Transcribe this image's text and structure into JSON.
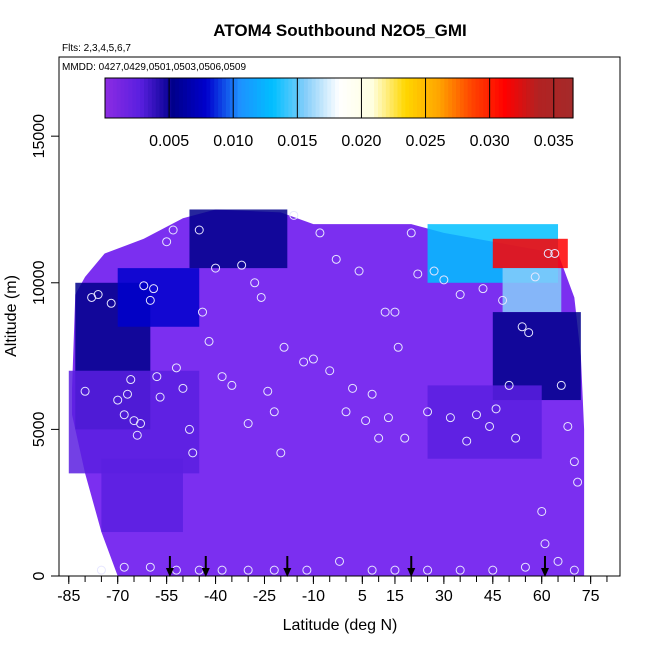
{
  "chart_data": {
    "type": "heatmap",
    "title": "ATOM4 Southbound N2O5_GMI",
    "subtitle_flights": "Flts: 2,3,4,5,6,7",
    "subtitle_dates": "MMDD: 0427,0429,0501,0503,0506,0509",
    "xlabel": "Latitude (deg N)",
    "ylabel": "Altitude (m)",
    "xlim": [
      -88,
      84
    ],
    "ylim": [
      0,
      17700
    ],
    "x_ticks": [
      -85,
      -70,
      -55,
      -40,
      -25,
      -10,
      5,
      15,
      30,
      45,
      60,
      75
    ],
    "y_ticks": [
      0,
      5000,
      10000,
      15000
    ],
    "colorbar": {
      "range": [
        0,
        0.0365
      ],
      "ticks": [
        0.005,
        0.01,
        0.015,
        0.02,
        0.025,
        0.03,
        0.035
      ],
      "tick_labels": [
        "0.005",
        "0.010",
        "0.015",
        "0.020",
        "0.025",
        "0.030",
        "0.035"
      ],
      "colors": [
        "#8a2be2",
        "#5a1fe0",
        "#00008b",
        "#0000cd",
        "#1e90ff",
        "#00bfff",
        "#87cefa",
        "#ffffff",
        "#ffffe0",
        "#ffd700",
        "#ffa500",
        "#ff4500",
        "#ff0000",
        "#b22222",
        "#a52a2a"
      ],
      "placement": "top"
    },
    "background_color": "#7b2ff0",
    "regions": [
      {
        "x": [
          -83,
          -60
        ],
        "y": [
          5000,
          10000
        ],
        "value": 0.0045
      },
      {
        "x": [
          -70,
          -45
        ],
        "y": [
          8500,
          10500
        ],
        "value": 0.0085
      },
      {
        "x": [
          -48,
          -18
        ],
        "y": [
          10500,
          12500
        ],
        "value": 0.0042
      },
      {
        "x": [
          -85,
          -45
        ],
        "y": [
          3500,
          7000
        ],
        "value": 0.0035
      },
      {
        "x": [
          -75,
          -50
        ],
        "y": [
          1500,
          4000
        ],
        "value": 0.0015
      },
      {
        "x": [
          25,
          65
        ],
        "y": [
          10000,
          12000
        ],
        "value": 0.012
      },
      {
        "x": [
          45,
          68
        ],
        "y": [
          10500,
          11500
        ],
        "value": 0.03
      },
      {
        "x": [
          48,
          66
        ],
        "y": [
          9000,
          10500
        ],
        "value": 0.015
      },
      {
        "x": [
          45,
          72
        ],
        "y": [
          6000,
          9000
        ],
        "value": 0.0045
      },
      {
        "x": [
          25,
          60
        ],
        "y": [
          4000,
          6500
        ],
        "value": 0.002
      }
    ],
    "observations": [
      {
        "x": -80,
        "y": 6300
      },
      {
        "x": -78,
        "y": 9500
      },
      {
        "x": -76,
        "y": 9600
      },
      {
        "x": -72,
        "y": 9300
      },
      {
        "x": -70,
        "y": 6000
      },
      {
        "x": -68,
        "y": 5500
      },
      {
        "x": -67,
        "y": 6200
      },
      {
        "x": -66,
        "y": 6700
      },
      {
        "x": -65,
        "y": 5300
      },
      {
        "x": -64,
        "y": 4800
      },
      {
        "x": -63,
        "y": 5200
      },
      {
        "x": -62,
        "y": 9900
      },
      {
        "x": -60,
        "y": 9400
      },
      {
        "x": -59,
        "y": 9800
      },
      {
        "x": -58,
        "y": 6800
      },
      {
        "x": -57,
        "y": 6100
      },
      {
        "x": -55,
        "y": 11400
      },
      {
        "x": -53,
        "y": 11800
      },
      {
        "x": -52,
        "y": 7100
      },
      {
        "x": -50,
        "y": 6400
      },
      {
        "x": -48,
        "y": 5000
      },
      {
        "x": -47,
        "y": 4200
      },
      {
        "x": -45,
        "y": 11800
      },
      {
        "x": -44,
        "y": 9000
      },
      {
        "x": -42,
        "y": 8000
      },
      {
        "x": -40,
        "y": 10500
      },
      {
        "x": -38,
        "y": 6800
      },
      {
        "x": -35,
        "y": 6500
      },
      {
        "x": -32,
        "y": 10600
      },
      {
        "x": -30,
        "y": 5200
      },
      {
        "x": -28,
        "y": 10000
      },
      {
        "x": -26,
        "y": 9500
      },
      {
        "x": -24,
        "y": 6300
      },
      {
        "x": -22,
        "y": 5600
      },
      {
        "x": -20,
        "y": 4200
      },
      {
        "x": -19,
        "y": 7800
      },
      {
        "x": -16,
        "y": 12300
      },
      {
        "x": -13,
        "y": 7300
      },
      {
        "x": -10,
        "y": 7400
      },
      {
        "x": -8,
        "y": 11700
      },
      {
        "x": -5,
        "y": 7000
      },
      {
        "x": -3,
        "y": 10800
      },
      {
        "x": 0,
        "y": 5600
      },
      {
        "x": 2,
        "y": 6400
      },
      {
        "x": 4,
        "y": 10400
      },
      {
        "x": 6,
        "y": 5300
      },
      {
        "x": 8,
        "y": 6200
      },
      {
        "x": 10,
        "y": 4700
      },
      {
        "x": 12,
        "y": 9000
      },
      {
        "x": 13,
        "y": 5400
      },
      {
        "x": 15,
        "y": 9000
      },
      {
        "x": 16,
        "y": 7800
      },
      {
        "x": 18,
        "y": 4700
      },
      {
        "x": 20,
        "y": 11700
      },
      {
        "x": 22,
        "y": 10300
      },
      {
        "x": 25,
        "y": 5600
      },
      {
        "x": 27,
        "y": 10400
      },
      {
        "x": 30,
        "y": 10100
      },
      {
        "x": 32,
        "y": 5400
      },
      {
        "x": 35,
        "y": 9600
      },
      {
        "x": 37,
        "y": 4600
      },
      {
        "x": 40,
        "y": 5500
      },
      {
        "x": 42,
        "y": 9800
      },
      {
        "x": 44,
        "y": 5100
      },
      {
        "x": 46,
        "y": 5700
      },
      {
        "x": 48,
        "y": 9400
      },
      {
        "x": 50,
        "y": 6500
      },
      {
        "x": 52,
        "y": 4700
      },
      {
        "x": 54,
        "y": 8500
      },
      {
        "x": 56,
        "y": 8300
      },
      {
        "x": 58,
        "y": 10200
      },
      {
        "x": 60,
        "y": 2200
      },
      {
        "x": 61,
        "y": 1100
      },
      {
        "x": 62,
        "y": 11000
      },
      {
        "x": 64,
        "y": 11000
      },
      {
        "x": 66,
        "y": 6500
      },
      {
        "x": 68,
        "y": 5100
      },
      {
        "x": 70,
        "y": 3900
      },
      {
        "x": 71,
        "y": 3200
      },
      {
        "x": -75,
        "y": 200
      },
      {
        "x": -68,
        "y": 300
      },
      {
        "x": -60,
        "y": 300
      },
      {
        "x": -52,
        "y": 200
      },
      {
        "x": -45,
        "y": 200
      },
      {
        "x": -38,
        "y": 200
      },
      {
        "x": -30,
        "y": 200
      },
      {
        "x": -22,
        "y": 200
      },
      {
        "x": -12,
        "y": 200
      },
      {
        "x": -2,
        "y": 500
      },
      {
        "x": 8,
        "y": 200
      },
      {
        "x": 15,
        "y": 200
      },
      {
        "x": 25,
        "y": 200
      },
      {
        "x": 35,
        "y": 200
      },
      {
        "x": 45,
        "y": 200
      },
      {
        "x": 55,
        "y": 300
      },
      {
        "x": 65,
        "y": 500
      },
      {
        "x": 70,
        "y": 200
      }
    ],
    "arrows": [
      -54,
      -43,
      -18,
      20,
      61
    ]
  }
}
